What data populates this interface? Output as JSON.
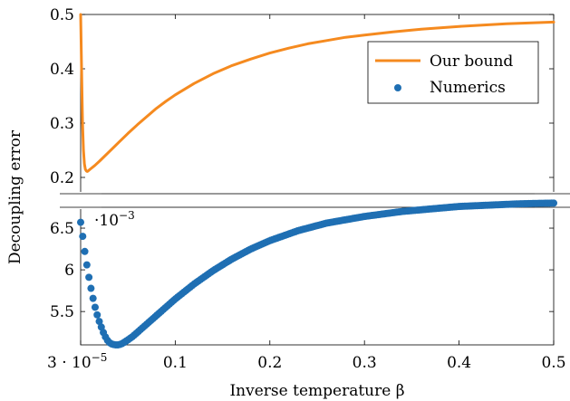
{
  "chart_data": {
    "type": "line",
    "xlabel": "Inverse temperature β",
    "ylabel": "Decoupling error",
    "x_ticks": [
      {
        "value": 3e-05,
        "label": "3 · 10",
        "sup": "−5"
      },
      {
        "value": 0.1,
        "label": "0.1"
      },
      {
        "value": 0.2,
        "label": "0.2"
      },
      {
        "value": 0.3,
        "label": "0.3"
      },
      {
        "value": 0.4,
        "label": "0.4"
      },
      {
        "value": 0.5,
        "label": "0.5"
      }
    ],
    "xlim": [
      3e-05,
      0.5
    ],
    "axis_break": true,
    "colors": {
      "bound": "#f58a1f",
      "numerics": "#1f6fb3"
    },
    "panels": [
      {
        "name": "top",
        "ylim": [
          0.17,
          0.5
        ],
        "y_ticks": [
          {
            "value": 0.2,
            "label": "0.2"
          },
          {
            "value": 0.3,
            "label": "0.3"
          },
          {
            "value": 0.4,
            "label": "0.4"
          },
          {
            "value": 0.5,
            "label": "0.5"
          }
        ]
      },
      {
        "name": "bottom",
        "ylim": [
          5.1,
          6.75
        ],
        "y_ticks": [
          {
            "value": 5.5,
            "label": "5.5"
          },
          {
            "value": 6,
            "label": "6"
          },
          {
            "value": 6.5,
            "label": "6.5"
          }
        ],
        "scale_label": "·10",
        "scale_exponent": "−3"
      }
    ],
    "legend": {
      "placement": "top-right",
      "entries": [
        {
          "label": "Our bound",
          "marker": "line"
        },
        {
          "label": "Numerics",
          "marker": "dot"
        }
      ]
    },
    "series": [
      {
        "name": "Our bound",
        "panel": "top",
        "x": [
          3e-05,
          0.001,
          0.002,
          0.003,
          0.004,
          0.005,
          0.006,
          0.007,
          0.008,
          0.01,
          0.015,
          0.02,
          0.03,
          0.04,
          0.05,
          0.06,
          0.07,
          0.08,
          0.09,
          0.1,
          0.12,
          0.14,
          0.16,
          0.18,
          0.2,
          0.22,
          0.24,
          0.26,
          0.28,
          0.3,
          0.33,
          0.36,
          0.4,
          0.45,
          0.5
        ],
        "y": [
          0.5,
          0.4,
          0.3,
          0.25,
          0.225,
          0.215,
          0.212,
          0.211,
          0.212,
          0.215,
          0.222,
          0.23,
          0.247,
          0.264,
          0.281,
          0.297,
          0.312,
          0.327,
          0.34,
          0.352,
          0.373,
          0.391,
          0.406,
          0.418,
          0.429,
          0.438,
          0.446,
          0.452,
          0.458,
          0.462,
          0.468,
          0.473,
          0.478,
          0.483,
          0.486
        ]
      },
      {
        "name": "Numerics",
        "panel": "bottom",
        "x": [
          3e-05,
          0.002,
          0.004,
          0.006,
          0.008,
          0.01,
          0.012,
          0.014,
          0.016,
          0.018,
          0.02,
          0.022,
          0.024,
          0.026,
          0.028,
          0.03,
          0.033,
          0.036,
          0.04,
          0.043,
          0.046,
          0.05,
          0.055,
          0.06,
          0.065,
          0.07,
          0.075,
          0.08,
          0.085,
          0.09,
          0.095,
          0.1,
          0.11,
          0.12,
          0.13,
          0.14,
          0.15,
          0.16,
          0.17,
          0.18,
          0.19,
          0.2,
          0.21,
          0.22,
          0.23,
          0.24,
          0.25,
          0.26,
          0.27,
          0.28,
          0.29,
          0.3,
          0.31,
          0.32,
          0.33,
          0.34,
          0.35,
          0.36,
          0.37,
          0.38,
          0.39,
          0.4,
          0.41,
          0.42,
          0.43,
          0.44,
          0.45,
          0.46,
          0.47,
          0.48,
          0.49,
          0.5
        ],
        "y": [
          6.57,
          6.42,
          6.25,
          6.1,
          5.96,
          5.83,
          5.72,
          5.61,
          5.52,
          5.44,
          5.37,
          5.31,
          5.25,
          5.2,
          5.16,
          5.13,
          5.11,
          5.1,
          5.1,
          5.11,
          5.13,
          5.16,
          5.2,
          5.25,
          5.3,
          5.35,
          5.4,
          5.45,
          5.5,
          5.55,
          5.6,
          5.65,
          5.74,
          5.83,
          5.91,
          5.99,
          6.06,
          6.13,
          6.19,
          6.25,
          6.3,
          6.35,
          6.39,
          6.43,
          6.47,
          6.5,
          6.53,
          6.56,
          6.58,
          6.6,
          6.62,
          6.64,
          6.655,
          6.67,
          6.685,
          6.7,
          6.71,
          6.72,
          6.73,
          6.74,
          6.75,
          6.76,
          6.765,
          6.77,
          6.775,
          6.78,
          6.785,
          6.79,
          6.793,
          6.796,
          6.798,
          6.8
        ]
      }
    ]
  }
}
